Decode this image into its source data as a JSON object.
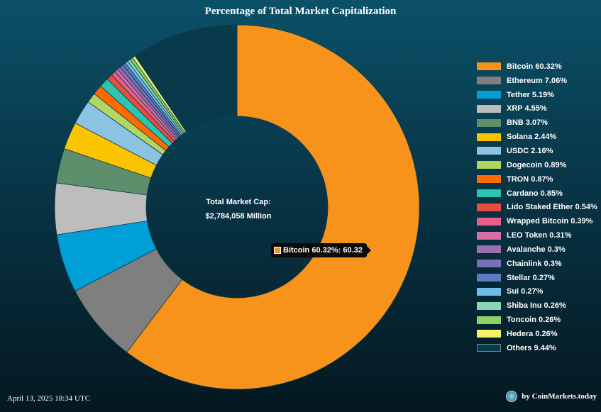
{
  "chart_data": {
    "type": "pie",
    "title": "Percentage of Total Market Capitalization",
    "center_label_title": "Total Market Cap:",
    "center_label_value": "$2,784,058 Million",
    "slices": [
      {
        "label": "Bitcoin 60.32%",
        "value": 60.32,
        "color": "#f7931a"
      },
      {
        "label": "Ethereum 7.06%",
        "value": 7.06,
        "color": "#7f7f7f"
      },
      {
        "label": "Tether 5.19%",
        "value": 5.19,
        "color": "#009fd8"
      },
      {
        "label": "XRP 4.55%",
        "value": 4.55,
        "color": "#bdbdbd"
      },
      {
        "label": "BNB 3.07%",
        "value": 3.07,
        "color": "#5e8f6c"
      },
      {
        "label": "Solana 2.44%",
        "value": 2.44,
        "color": "#fbc400"
      },
      {
        "label": "USDC 2.16%",
        "value": 2.16,
        "color": "#8cc3e3"
      },
      {
        "label": "Dogecoin 0.89%",
        "value": 0.89,
        "color": "#b2d662"
      },
      {
        "label": "TRON 0.87%",
        "value": 0.87,
        "color": "#ff6a00"
      },
      {
        "label": "Cardano 0.85%",
        "value": 0.85,
        "color": "#2ec4b2"
      },
      {
        "label": "Lido Staked Ether 0.54%",
        "value": 0.54,
        "color": "#e84c3d"
      },
      {
        "label": "Wrapped Bitcoin 0.39%",
        "value": 0.39,
        "color": "#ea5d8a"
      },
      {
        "label": "LEO Token 0.31%",
        "value": 0.31,
        "color": "#d86da8"
      },
      {
        "label": "Avalanche 0.3%",
        "value": 0.3,
        "color": "#9b6fb0"
      },
      {
        "label": "Chainlink 0.3%",
        "value": 0.3,
        "color": "#7b6fb8"
      },
      {
        "label": "Stellar 0.27%",
        "value": 0.27,
        "color": "#5b7cc0"
      },
      {
        "label": "Sui 0.27%",
        "value": 0.27,
        "color": "#6fbde6"
      },
      {
        "label": "Shiba Inu 0.26%",
        "value": 0.26,
        "color": "#88d6b8"
      },
      {
        "label": "Toncoin 0.26%",
        "value": 0.26,
        "color": "#8ed06a"
      },
      {
        "label": "Hedera 0.26%",
        "value": 0.26,
        "color": "#f3f06a"
      },
      {
        "label": "Others 9.44%",
        "value": 9.44,
        "color": "#083a4b"
      }
    ],
    "legend_position": "right",
    "tooltip": {
      "text": "Bitcoin 60.32%: 60.32",
      "color": "#f7931a"
    }
  },
  "footer": {
    "date": "April 13, 2025 18:34 UTC",
    "credit": "by CoinMarkets.today"
  }
}
